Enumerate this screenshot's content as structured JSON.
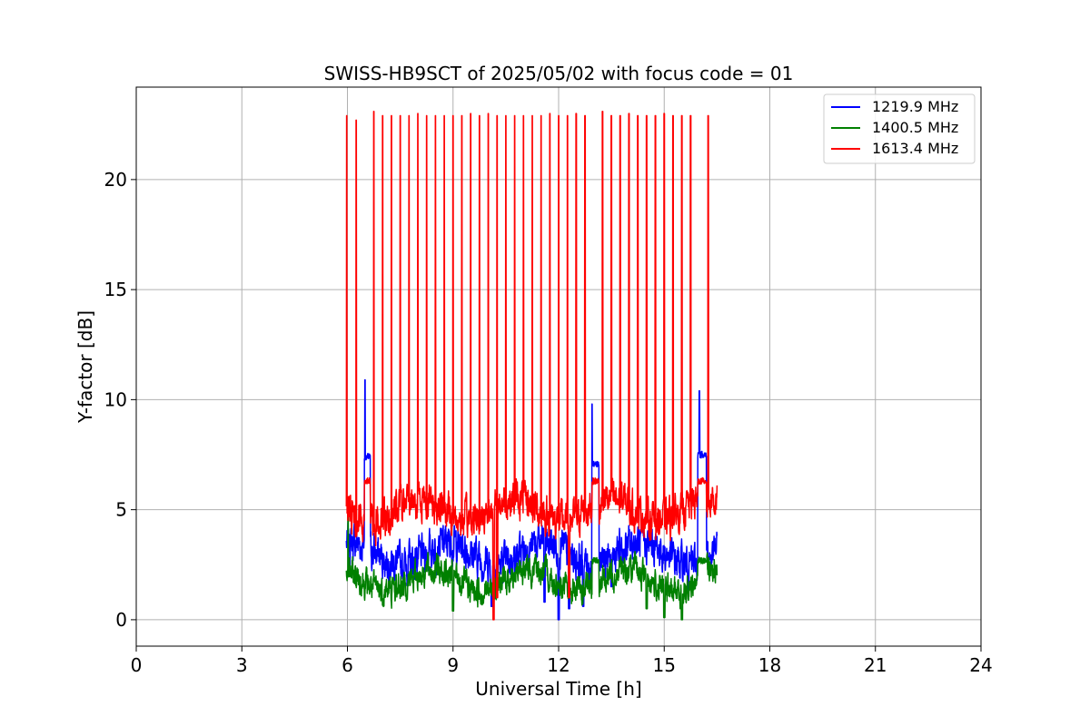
{
  "chart_data": {
    "type": "line",
    "title": "SWISS-HB9SCT of 2025/05/02 with focus code = 01",
    "xlabel": "Universal Time [h]",
    "ylabel": "Y-factor [dB]",
    "xlim": [
      0,
      24
    ],
    "ylim": [
      -1.2,
      24.2
    ],
    "xticks": [
      0,
      3,
      6,
      9,
      12,
      15,
      18,
      21,
      24
    ],
    "yticks": [
      0,
      5,
      10,
      15,
      20
    ],
    "grid": true,
    "legend_position": "top-right",
    "data_range": [
      5.97,
      16.5
    ],
    "series": [
      {
        "name": "1219.9 MHz",
        "color": "#0000ff",
        "base": 3.0,
        "noise": 0.9,
        "dips": [
          [
            10.1,
            0.6
          ],
          [
            11.6,
            0.8
          ],
          [
            12.0,
            0.0
          ],
          [
            12.3,
            0.5
          ],
          [
            12.7,
            0.6
          ],
          [
            13.5,
            1.5
          ]
        ],
        "plateaus": [
          [
            6.48,
            6.65,
            7.4
          ],
          [
            12.95,
            13.15,
            7.1
          ],
          [
            15.95,
            16.2,
            7.5
          ]
        ],
        "spikes": [
          [
            6.5,
            10.9
          ],
          [
            12.95,
            9.8
          ],
          [
            16.0,
            10.4
          ]
        ]
      },
      {
        "name": "1400.5 MHz",
        "color": "#008000",
        "base": 1.8,
        "noise": 0.7,
        "dips": [
          [
            9.0,
            0.4
          ],
          [
            14.5,
            0.5
          ],
          [
            15.0,
            0.1
          ],
          [
            15.5,
            0.0
          ]
        ],
        "plateaus": [
          [
            12.95,
            13.15,
            2.7
          ],
          [
            15.95,
            16.2,
            2.7
          ]
        ],
        "spikes": [
          [
            6.02,
            5.4
          ]
        ]
      },
      {
        "name": "1613.4 MHz",
        "color": "#ff0000",
        "base": 5.0,
        "noise": 0.9,
        "dips": [
          [
            10.15,
            0.0
          ],
          [
            10.25,
            1.0
          ],
          [
            12.3,
            1.0
          ]
        ],
        "plateaus": [
          [
            6.48,
            6.65,
            6.3
          ],
          [
            12.95,
            13.15,
            6.3
          ],
          [
            15.95,
            16.2,
            6.3
          ]
        ],
        "spikes": [
          [
            5.98,
            22.9
          ],
          [
            6.25,
            22.7
          ],
          [
            6.75,
            23.1
          ],
          [
            7.0,
            22.9
          ],
          [
            7.25,
            22.9
          ],
          [
            7.5,
            22.9
          ],
          [
            7.75,
            22.9
          ],
          [
            8.0,
            23.0
          ],
          [
            8.25,
            22.9
          ],
          [
            8.5,
            22.9
          ],
          [
            8.75,
            22.9
          ],
          [
            9.0,
            22.9
          ],
          [
            9.25,
            22.9
          ],
          [
            9.5,
            23.0
          ],
          [
            9.75,
            22.9
          ],
          [
            10.0,
            23.0
          ],
          [
            10.25,
            22.9
          ],
          [
            10.5,
            22.9
          ],
          [
            10.75,
            22.9
          ],
          [
            11.0,
            22.9
          ],
          [
            11.25,
            22.9
          ],
          [
            11.5,
            22.9
          ],
          [
            11.75,
            23.0
          ],
          [
            12.0,
            22.9
          ],
          [
            12.25,
            22.9
          ],
          [
            12.5,
            23.0
          ],
          [
            12.75,
            22.9
          ],
          [
            13.25,
            23.1
          ],
          [
            13.5,
            22.9
          ],
          [
            13.75,
            22.9
          ],
          [
            14.0,
            23.0
          ],
          [
            14.25,
            22.9
          ],
          [
            14.5,
            22.9
          ],
          [
            14.75,
            22.9
          ],
          [
            15.0,
            23.0
          ],
          [
            15.25,
            22.9
          ],
          [
            15.5,
            22.9
          ],
          [
            15.75,
            22.9
          ],
          [
            16.25,
            22.9
          ]
        ]
      }
    ]
  }
}
